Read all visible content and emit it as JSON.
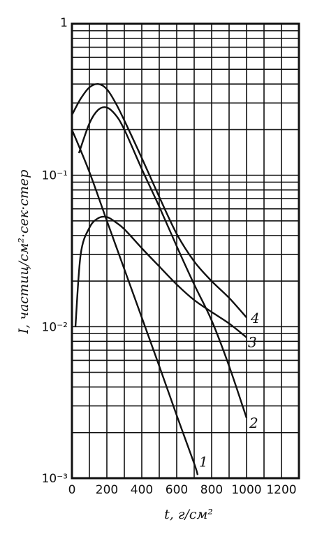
{
  "chart_data": {
    "type": "line",
    "title": "",
    "xlabel": "t, г/см²",
    "ylabel": "I, частиц/см²·сек·стер",
    "xlim": [
      0,
      1300
    ],
    "ylim": [
      0.001,
      1
    ],
    "yscale": "log",
    "grid": true,
    "x_ticks": [
      "0",
      "200",
      "400",
      "600",
      "800",
      "1000",
      "1200"
    ],
    "y_ticks": [
      "1",
      "10⁻¹",
      "10⁻²",
      "10⁻³"
    ],
    "series": [
      {
        "name": "1",
        "x": [
          0,
          100,
          200,
          300,
          400,
          500,
          600,
          700,
          720
        ],
        "y": [
          0.2,
          0.105,
          0.05,
          0.024,
          0.0115,
          0.0055,
          0.0026,
          0.00125,
          0.00105
        ]
      },
      {
        "name": "2",
        "x": [
          40,
          100,
          150,
          200,
          250,
          300,
          400,
          500,
          600,
          700,
          800,
          900,
          1000
        ],
        "y": [
          0.14,
          0.22,
          0.27,
          0.28,
          0.25,
          0.2,
          0.11,
          0.062,
          0.034,
          0.019,
          0.011,
          0.0055,
          0.0025
        ]
      },
      {
        "name": "3",
        "x": [
          20,
          50,
          100,
          150,
          200,
          250,
          300,
          400,
          500,
          600,
          700,
          800,
          900,
          1000
        ],
        "y": [
          0.01,
          0.03,
          0.045,
          0.052,
          0.053,
          0.049,
          0.044,
          0.033,
          0.025,
          0.019,
          0.015,
          0.0125,
          0.0105,
          0.0085
        ]
      },
      {
        "name": "4",
        "x": [
          0,
          50,
          100,
          150,
          200,
          250,
          300,
          400,
          500,
          600,
          700,
          800,
          900,
          1000
        ],
        "y": [
          0.25,
          0.32,
          0.38,
          0.4,
          0.37,
          0.3,
          0.23,
          0.13,
          0.072,
          0.041,
          0.027,
          0.02,
          0.0155,
          0.0115
        ]
      }
    ]
  }
}
